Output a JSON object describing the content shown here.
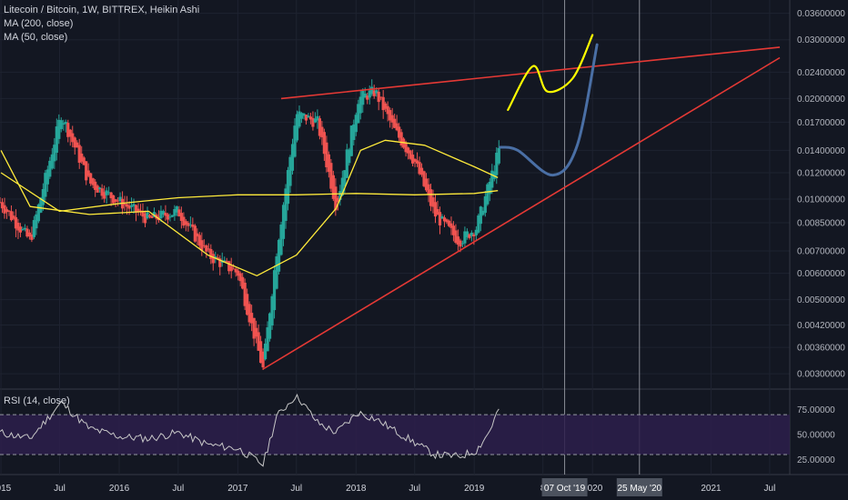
{
  "legend": {
    "title": "Litecoin / Bitcoin, 1W, BITTREX, Heikin Ashi",
    "ma200": "MA (200, close)",
    "ma50": "MA (50, close)",
    "rsi": "RSI (14, close)"
  },
  "colors": {
    "background": "#131722",
    "candle_up": "#26a69a",
    "candle_down": "#ef5350",
    "ma": "#ffeb3b",
    "trendline": "#e53935",
    "projection_yellow": "#ffff00",
    "projection_blue": "#4a6fa5",
    "rsi_line": "#c8c8c8",
    "rsi_band": "#2d1e4b"
  },
  "chart_data": [
    {
      "type": "candlestick",
      "title": "Litecoin / Bitcoin, 1W, BITTREX, Heikin Ashi",
      "y_scale": "log",
      "ylim": [
        0.0027,
        0.038
      ],
      "y_ticks": [
        "0.03600000",
        "0.03000000",
        "0.02400000",
        "0.02000000",
        "0.01700000",
        "0.01400000",
        "0.01200000",
        "0.01000000",
        "0.00850000",
        "0.00700000",
        "0.00600000",
        "0.00500000",
        "0.00420000",
        "0.00360000",
        "0.00300000"
      ],
      "x_ticks": [
        "2015",
        "Jul",
        "2016",
        "Jul",
        "2017",
        "Jul",
        "2018",
        "Jul",
        "2019",
        "8",
        "2020",
        "2021",
        "Jul"
      ],
      "x_markers": [
        "07 Oct '19",
        "25 May '20"
      ],
      "series": [
        {
          "name": "Litecoin / Bitcoin",
          "x": [
            "2014-12-29",
            "2015-04-01",
            "2015-07-06",
            "2015-10-01",
            "2016-01-04",
            "2016-04-01",
            "2016-07-01",
            "2016-10-01",
            "2017-01-02",
            "2017-03-20",
            "2017-05-01",
            "2017-07-01",
            "2017-09-04",
            "2017-11-01",
            "2018-01-08",
            "2018-03-01",
            "2018-05-01",
            "2018-07-01",
            "2018-09-01",
            "2018-11-15",
            "2019-01-07",
            "2019-02-15",
            "2019-03-18"
          ],
          "values": [
            0.0098,
            0.0075,
            0.018,
            0.0112,
            0.0098,
            0.0087,
            0.0092,
            0.0068,
            0.006,
            0.0031,
            0.007,
            0.018,
            0.017,
            0.0095,
            0.02,
            0.021,
            0.016,
            0.013,
            0.009,
            0.0075,
            0.0082,
            0.011,
            0.014
          ]
        },
        {
          "name": "MA (200, close)",
          "x": [
            "2015-01-01",
            "2015-07-01",
            "2016-01-01",
            "2016-07-01",
            "2017-01-01",
            "2017-07-01",
            "2018-01-01",
            "2018-07-01",
            "2019-01-01",
            "2019-03-15"
          ],
          "values": [
            0.012,
            0.0092,
            0.0097,
            0.0101,
            0.0103,
            0.0103,
            0.0104,
            0.0103,
            0.0104,
            0.0106
          ]
        },
        {
          "name": "MA (50, close)",
          "x": [
            "2015-01-01",
            "2015-04-01",
            "2015-10-01",
            "2016-04-01",
            "2016-10-01",
            "2017-03-01",
            "2017-07-01",
            "2017-11-01",
            "2018-01-15",
            "2018-04-01",
            "2018-08-01",
            "2019-01-01",
            "2019-03-15"
          ],
          "values": [
            0.014,
            0.0095,
            0.009,
            0.0092,
            0.0068,
            0.0059,
            0.0068,
            0.0094,
            0.014,
            0.015,
            0.0145,
            0.0125,
            0.0116
          ]
        }
      ],
      "annotations": [
        {
          "name": "upper trendline",
          "x": [
            "2017-05-15",
            "2021-08-01"
          ],
          "values": [
            0.02,
            0.0285
          ]
        },
        {
          "name": "lower trendline",
          "x": [
            "2017-03-20",
            "2021-08-01"
          ],
          "values": [
            0.0031,
            0.0265
          ]
        },
        {
          "name": "yellow projection",
          "x": [
            "2019-04-15",
            "2019-07-01",
            "2019-08-15",
            "2019-11-01",
            "2020-01-01"
          ],
          "values": [
            0.0185,
            0.025,
            0.021,
            0.023,
            0.031
          ]
        },
        {
          "name": "blue projection",
          "x": [
            "2019-03-22",
            "2019-05-15",
            "2019-09-01",
            "2019-11-15",
            "2020-01-15"
          ],
          "values": [
            0.0143,
            0.014,
            0.0118,
            0.0145,
            0.029
          ]
        }
      ]
    },
    {
      "type": "line",
      "title": "RSI (14, close)",
      "ylim": [
        10,
        92
      ],
      "y_ticks": [
        "75.00000",
        "50.00000",
        "25.00000"
      ],
      "bands": [
        30,
        70
      ],
      "x": [
        "2014-12-29",
        "2015-04-01",
        "2015-07-06",
        "2015-10-01",
        "2016-01-04",
        "2016-04-01",
        "2016-07-01",
        "2016-10-01",
        "2017-01-02",
        "2017-03-20",
        "2017-05-01",
        "2017-07-01",
        "2017-09-04",
        "2017-11-01",
        "2018-01-08",
        "2018-03-01",
        "2018-05-01",
        "2018-07-01",
        "2018-09-01",
        "2018-11-15",
        "2019-01-07",
        "2019-02-15",
        "2019-03-18"
      ],
      "values": [
        52,
        46,
        82,
        56,
        48,
        46,
        52,
        40,
        36,
        20,
        68,
        90,
        62,
        52,
        72,
        66,
        54,
        42,
        30,
        28,
        34,
        52,
        76
      ]
    }
  ]
}
